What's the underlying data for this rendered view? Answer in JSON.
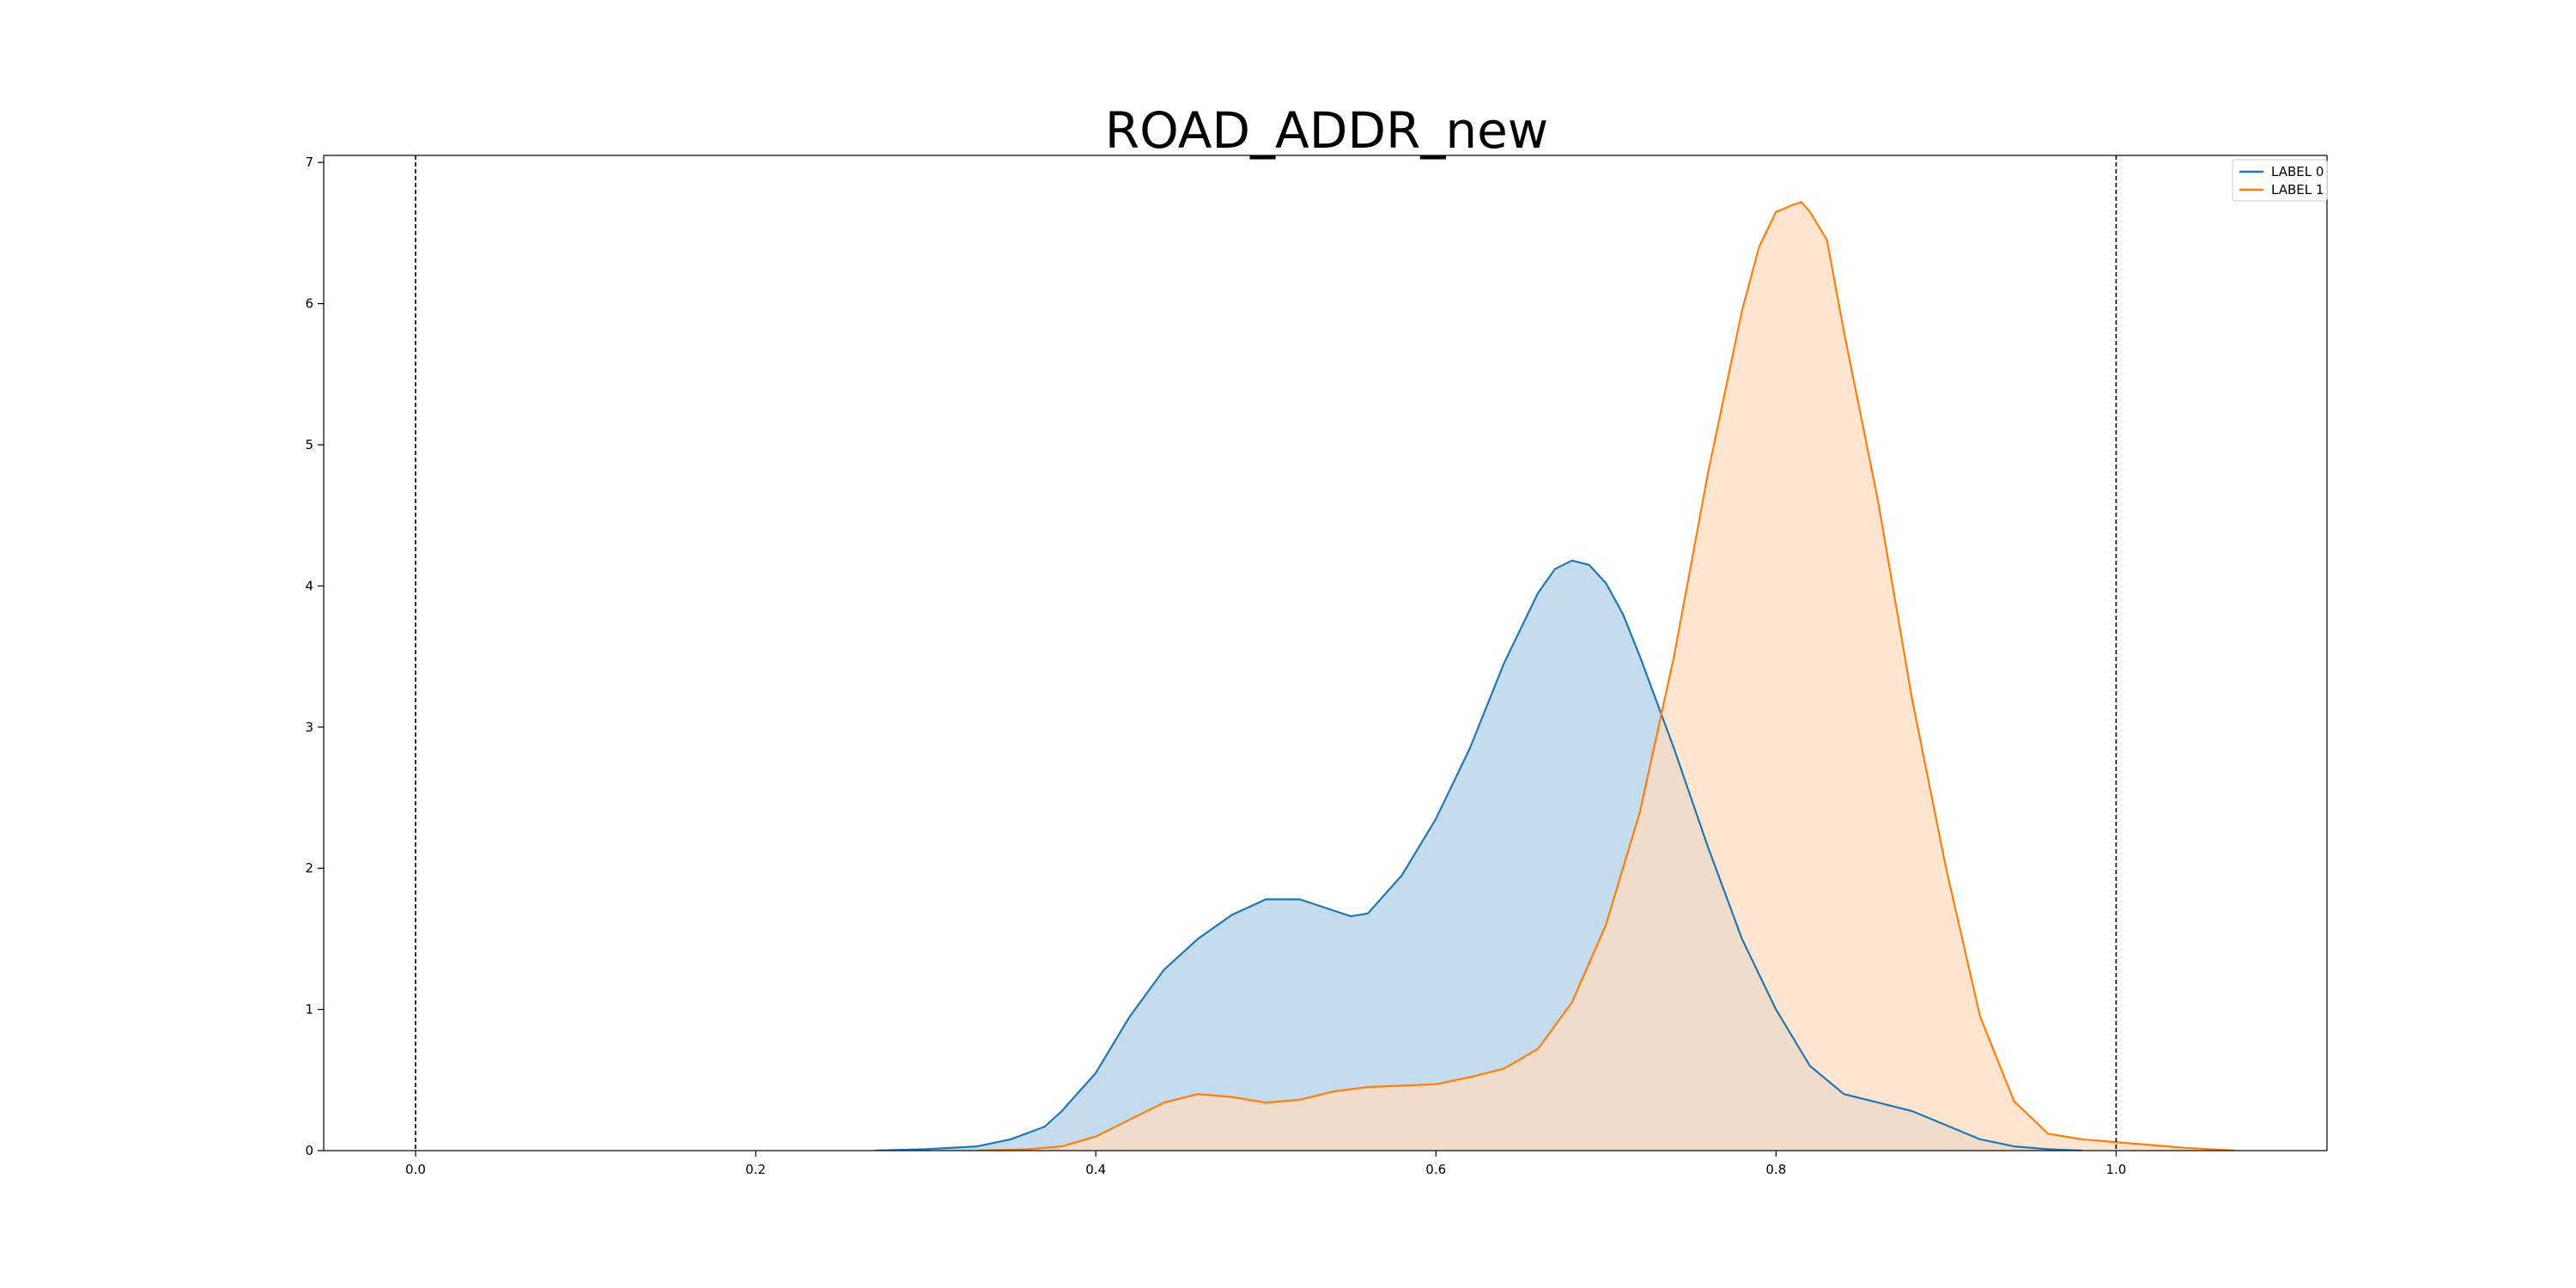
{
  "chart_data": {
    "type": "area",
    "title": "ROAD_ADDR_new",
    "xlabel": "",
    "ylabel": "",
    "xlim": [
      -0.054,
      1.124
    ],
    "ylim": [
      0,
      7.05
    ],
    "xticks": [
      0.0,
      0.2,
      0.4,
      0.6,
      0.8,
      1.0
    ],
    "xtick_labels": [
      "0.0",
      "0.2",
      "0.4",
      "0.6",
      "0.8",
      "1.0"
    ],
    "yticks": [
      0,
      1,
      2,
      3,
      4,
      5,
      6,
      7
    ],
    "ytick_labels": [
      "0",
      "1",
      "2",
      "3",
      "4",
      "5",
      "6",
      "7"
    ],
    "grid": false,
    "legend_position": "top-right",
    "vlines": [
      0.0,
      1.0
    ],
    "colors": {
      "label0_line": "#1f77b4",
      "label0_fill": "#c5dbee",
      "label1_line": "#ff7f0e",
      "label1_fill": "#ffdcbf",
      "overlap_fill": "#d4c3b3"
    },
    "series": [
      {
        "name": "LABEL 0",
        "x": [
          0.27,
          0.3,
          0.33,
          0.35,
          0.37,
          0.38,
          0.4,
          0.42,
          0.44,
          0.46,
          0.48,
          0.5,
          0.52,
          0.54,
          0.55,
          0.56,
          0.58,
          0.6,
          0.62,
          0.64,
          0.66,
          0.67,
          0.68,
          0.69,
          0.7,
          0.71,
          0.72,
          0.74,
          0.76,
          0.78,
          0.8,
          0.82,
          0.84,
          0.86,
          0.88,
          0.9,
          0.92,
          0.94,
          0.96,
          0.98
        ],
        "y": [
          0.0,
          0.01,
          0.03,
          0.08,
          0.17,
          0.28,
          0.55,
          0.95,
          1.28,
          1.5,
          1.67,
          1.78,
          1.78,
          1.7,
          1.66,
          1.68,
          1.95,
          2.35,
          2.85,
          3.45,
          3.95,
          4.12,
          4.18,
          4.15,
          4.02,
          3.8,
          3.5,
          2.85,
          2.15,
          1.5,
          1.0,
          0.6,
          0.4,
          0.34,
          0.28,
          0.18,
          0.08,
          0.03,
          0.01,
          0.0
        ]
      },
      {
        "name": "LABEL 1",
        "x": [
          0.33,
          0.36,
          0.38,
          0.4,
          0.42,
          0.44,
          0.46,
          0.48,
          0.5,
          0.52,
          0.54,
          0.56,
          0.58,
          0.6,
          0.62,
          0.64,
          0.66,
          0.68,
          0.7,
          0.72,
          0.74,
          0.76,
          0.78,
          0.79,
          0.8,
          0.81,
          0.815,
          0.82,
          0.83,
          0.84,
          0.86,
          0.88,
          0.9,
          0.92,
          0.94,
          0.96,
          0.98,
          1.0,
          1.02,
          1.04,
          1.07
        ],
        "y": [
          0.0,
          0.01,
          0.03,
          0.1,
          0.22,
          0.34,
          0.4,
          0.38,
          0.34,
          0.36,
          0.42,
          0.45,
          0.46,
          0.47,
          0.52,
          0.58,
          0.72,
          1.05,
          1.6,
          2.4,
          3.5,
          4.8,
          5.95,
          6.4,
          6.65,
          6.7,
          6.72,
          6.65,
          6.45,
          5.8,
          4.6,
          3.2,
          2.0,
          0.95,
          0.35,
          0.12,
          0.08,
          0.06,
          0.04,
          0.02,
          0.0
        ]
      }
    ]
  }
}
